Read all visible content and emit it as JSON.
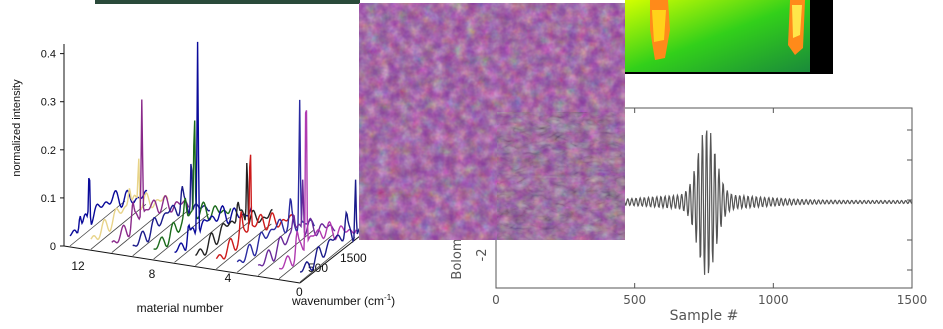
{
  "colors": {
    "spectra": [
      "#0a0a9a",
      "#e8d48a",
      "#8a2a8a",
      "#1a1a8a",
      "#1a6a1a",
      "#0a0a9a",
      "#222222",
      "#cc1a1a",
      "#2a2aa0",
      "#6a2a9a",
      "#b03ab0",
      "#1a1a8a"
    ],
    "thermal_bg": "#000000",
    "plot_line": "#555555"
  },
  "chart_data": [
    {
      "type": "line",
      "title": "",
      "ylabel": "normalized intensity",
      "xlabel": "material number",
      "zlabel": "wavenumber (cm",
      "zlabel_sup": "-1",
      "zlabel_close": ")",
      "y_ticks": [
        "0",
        "0.1",
        "0.2",
        "0.3",
        "0.4"
      ],
      "x_ticks": [
        "12",
        "8",
        "4"
      ],
      "z_ticks": [
        "0",
        "500",
        "1500"
      ],
      "ylim": [
        0,
        0.45
      ],
      "series_count": 12,
      "peaks": [
        0.12,
        0.11,
        0.26,
        0.13,
        0.22,
        0.43,
        0.15,
        0.18,
        0.28,
        0.12,
        0.37,
        0.14
      ]
    },
    {
      "type": "line",
      "title": "",
      "ylabel": "Bolome",
      "xlabel": "Sample #",
      "x_ticks": [
        "0",
        "500",
        "1000",
        "1500"
      ],
      "y_tick_visible": "-2",
      "xlim": [
        0,
        1500
      ]
    }
  ]
}
